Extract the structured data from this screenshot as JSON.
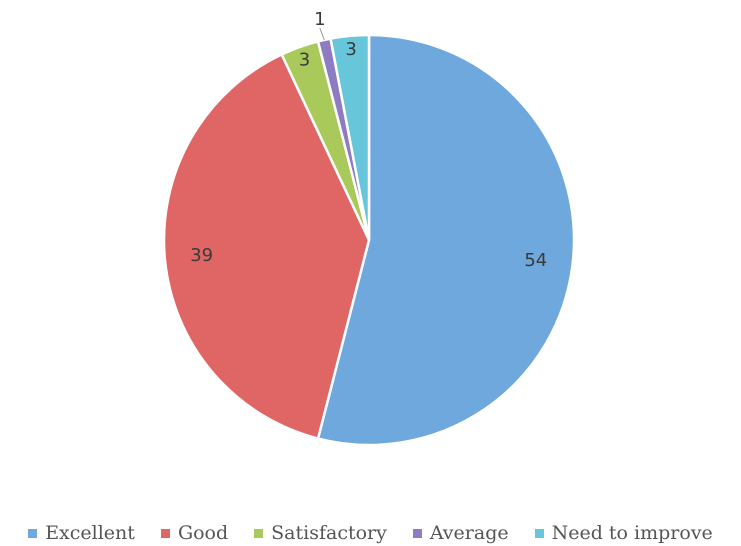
{
  "chart_data": {
    "type": "pie",
    "categories": [
      "Excellent",
      "Good",
      "Satisfactory",
      "Average",
      "Need to improve"
    ],
    "values": [
      54,
      39,
      3,
      1,
      3
    ],
    "data_labels": [
      "54",
      "39",
      "3",
      "1",
      "3"
    ],
    "colors": [
      "#6fa8dc",
      "#e06666",
      "#a9c95b",
      "#8e7cc3",
      "#67c6d9"
    ],
    "start_angle_deg": 0,
    "direction": "clockwise",
    "legend_position": "bottom"
  }
}
